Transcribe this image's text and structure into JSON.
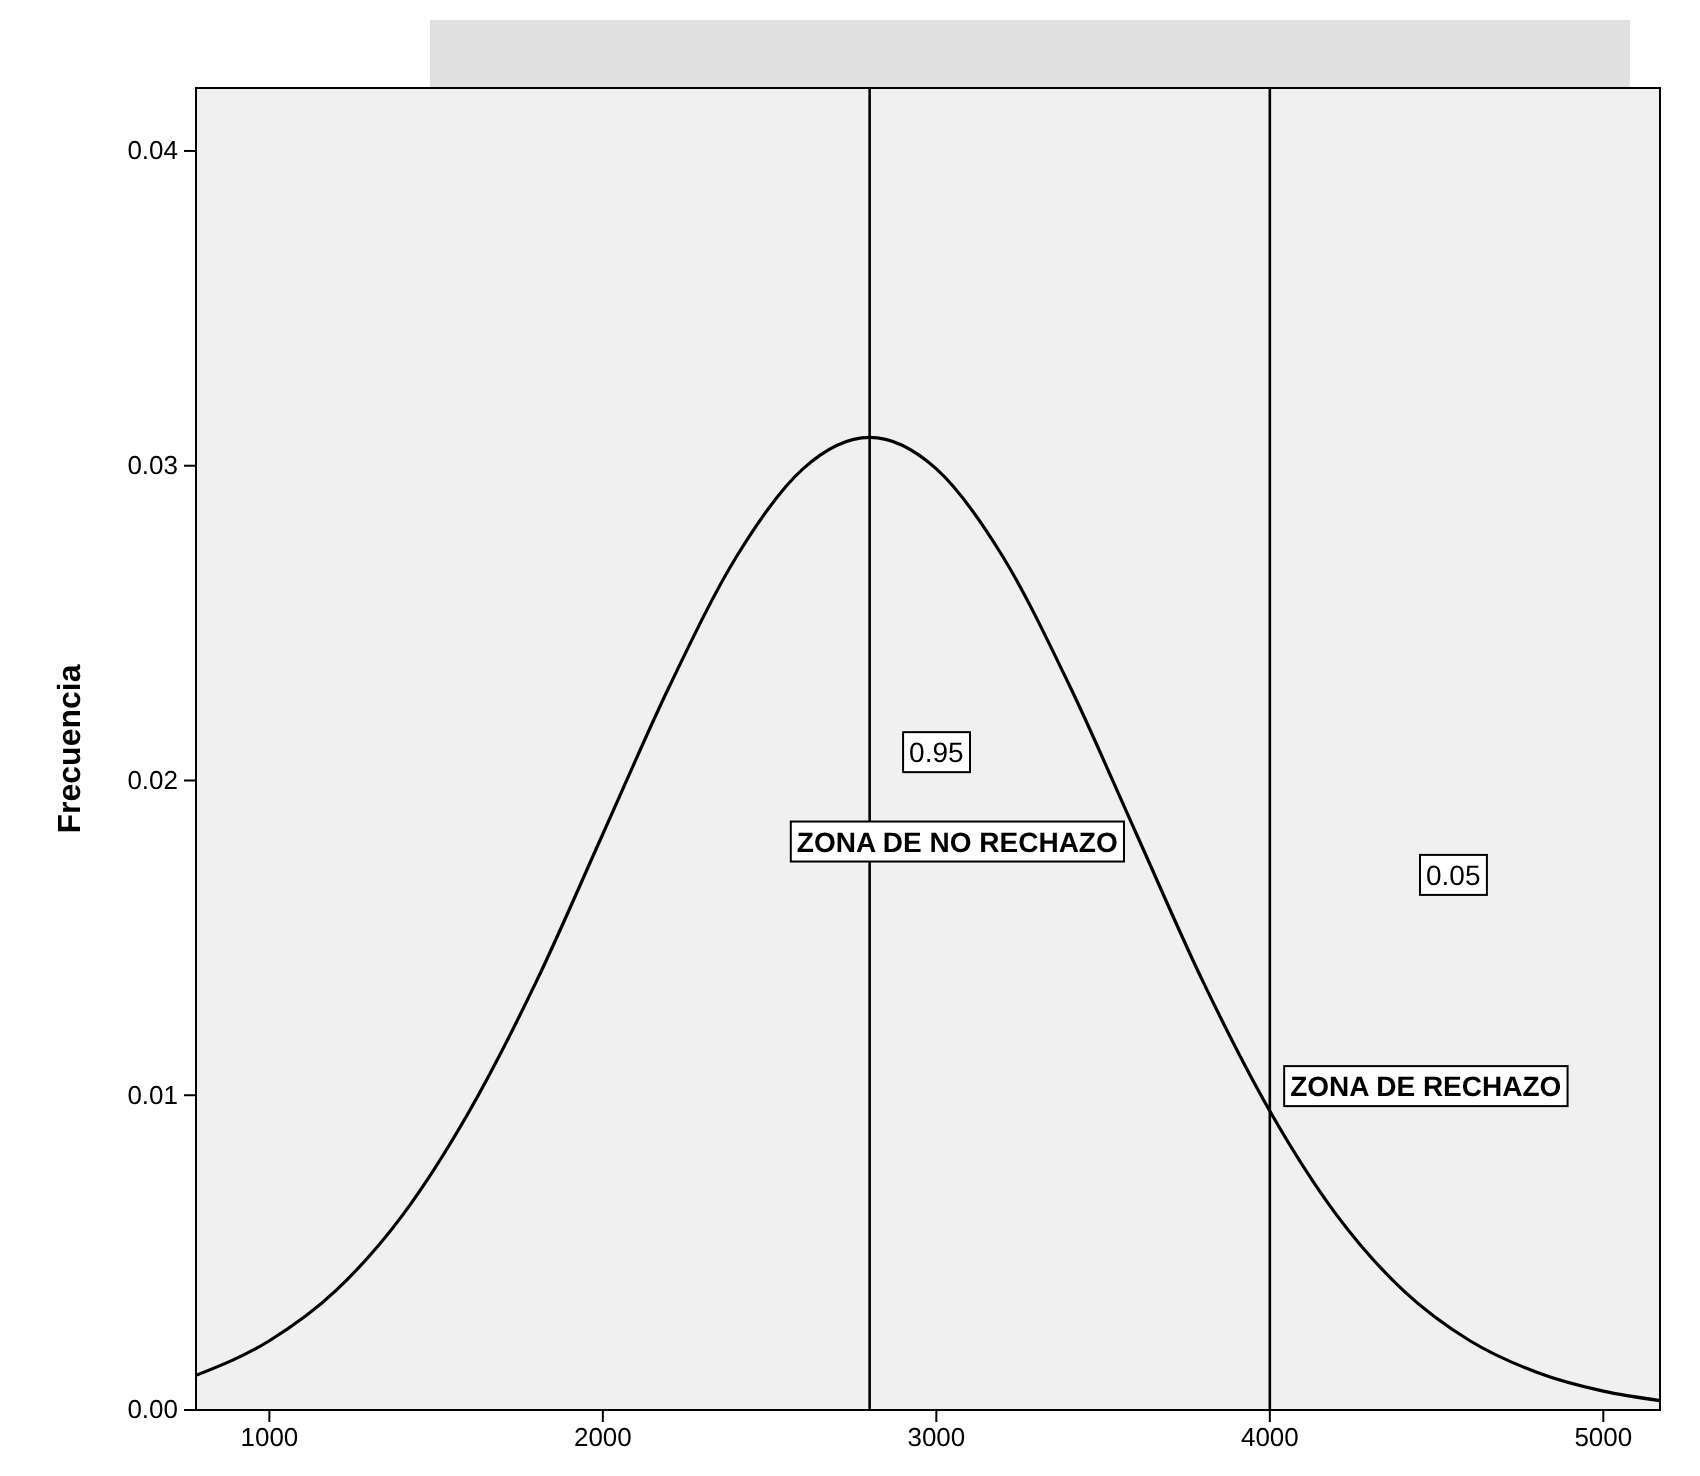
{
  "chart_data": {
    "type": "line",
    "ylabel": "Frecuencia",
    "x": [
      780,
      1000,
      1200,
      1400,
      1600,
      1800,
      2000,
      2200,
      2400,
      2600,
      2800,
      3000,
      3200,
      3400,
      3600,
      3800,
      4000,
      4200,
      4400,
      4600,
      4800,
      5000,
      5170
    ],
    "series": [
      {
        "color": "#000000",
        "values": [
          0.0011,
          0.0022,
          0.0038,
          0.0062,
          0.0095,
          0.0136,
          0.0183,
          0.023,
          0.0271,
          0.0299,
          0.0309,
          0.0299,
          0.0271,
          0.023,
          0.0183,
          0.0136,
          0.0095,
          0.0062,
          0.0038,
          0.0022,
          0.0012,
          0.0006,
          0.0003
        ]
      }
    ],
    "xlim": [
      780,
      5170
    ],
    "xticks": [
      1000,
      2000,
      3000,
      4000,
      5000
    ],
    "ylim": [
      0,
      0.042
    ],
    "yticks": [
      {
        "value": 0,
        "label": "0.00"
      },
      {
        "value": 0.01,
        "label": "0.01"
      },
      {
        "value": 0.02,
        "label": "0.02"
      },
      {
        "value": 0.03,
        "label": "0.03"
      },
      {
        "value": 0.04,
        "label": "0.04"
      }
    ],
    "ref_lines": [
      {
        "axis": "x",
        "value": 2800,
        "color": "#000000"
      },
      {
        "axis": "x",
        "value": 4000,
        "color": "#000000"
      }
    ],
    "annotations": [
      {
        "text": "0.95",
        "x": 3000,
        "y": 0.0209
      },
      "ZONA DE NO RECHAZO",
      {
        "text": "0.05",
        "x": 4550,
        "y": 0.017
      },
      "ZONA DE RECHAZO"
    ],
    "grid": false,
    "marker": "none",
    "line_style": "solid"
  }
}
